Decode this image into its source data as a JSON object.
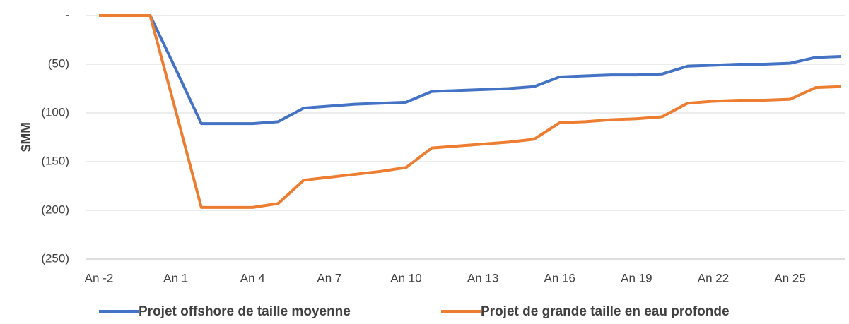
{
  "chart_data": {
    "type": "line",
    "y_label": "$MM",
    "categories": [
      "An -2",
      null,
      null,
      "An 1",
      null,
      null,
      "An 4",
      null,
      null,
      "An 7",
      null,
      null,
      "An 10",
      null,
      null,
      "An 13",
      null,
      null,
      "An 16",
      null,
      null,
      "An 19",
      null,
      null,
      "An 22",
      null,
      null,
      "An 25",
      null,
      null
    ],
    "series": [
      {
        "name": "Projet offshore de taille moyenne",
        "color": "#4472c4",
        "values": [
          0,
          0,
          0,
          -55,
          -111,
          -111,
          -111,
          -109,
          -95,
          -93,
          -91,
          -90,
          -89,
          -78,
          -77,
          -76,
          -75,
          -73,
          -63,
          -62,
          -61,
          -61,
          -60,
          -52,
          -51,
          -50,
          -50,
          -49,
          -43,
          -42
        ]
      },
      {
        "name": "Projet de grande taille en eau profonde",
        "color": "#ed7d31",
        "values": [
          0,
          0,
          0,
          -98,
          -197,
          -197,
          -197,
          -193,
          -169,
          -166,
          -163,
          -160,
          -156,
          -136,
          -134,
          -132,
          -130,
          -127,
          -110,
          -109,
          -107,
          -106,
          -104,
          -90,
          -88,
          -87,
          -87,
          -86,
          -74,
          -73
        ]
      }
    ],
    "ylim": [
      -250,
      0
    ],
    "yticks": [
      {
        "value": 0,
        "label": "-"
      },
      {
        "value": -50,
        "label": "(50)"
      },
      {
        "value": -100,
        "label": "(100)"
      },
      {
        "value": -150,
        "label": "(150)"
      },
      {
        "value": -200,
        "label": "(200)"
      },
      {
        "value": -250,
        "label": "(250)"
      }
    ],
    "grid": true,
    "legend": "bottom"
  }
}
